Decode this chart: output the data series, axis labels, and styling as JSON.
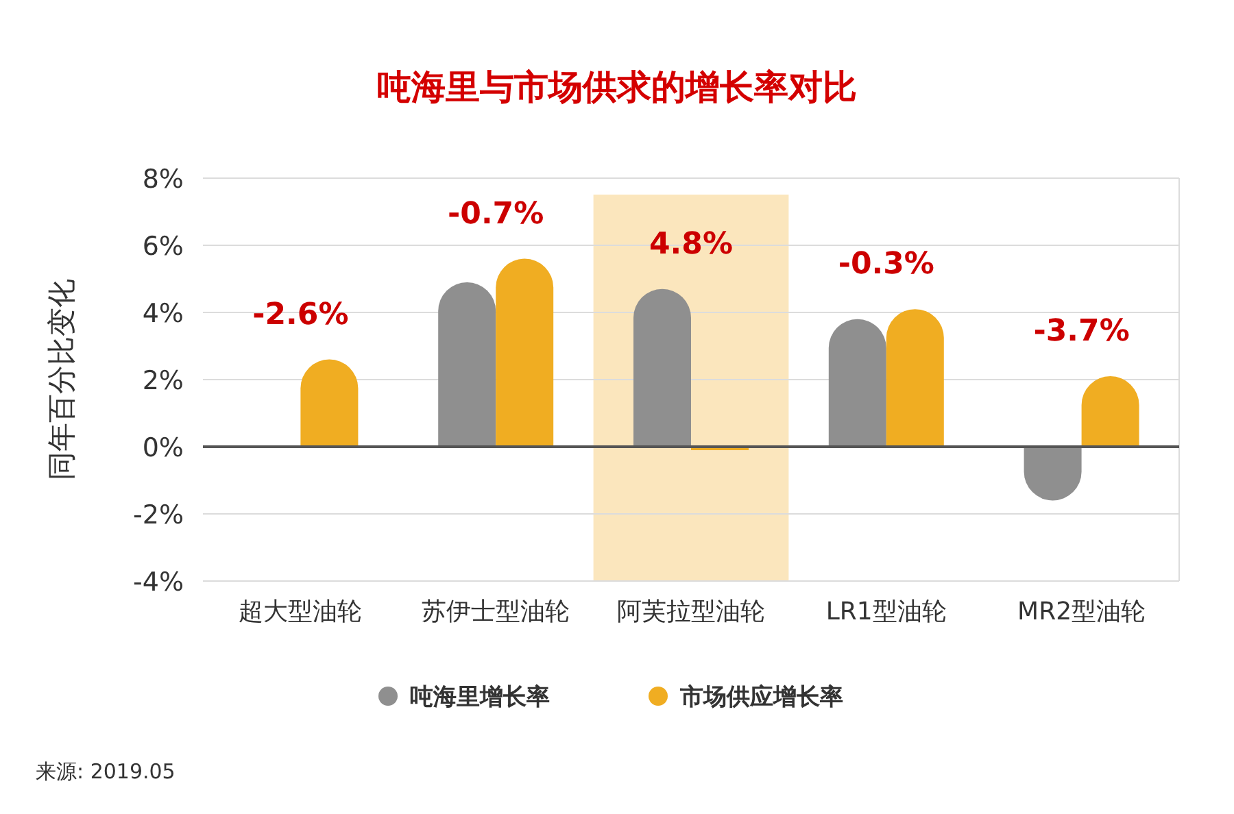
{
  "chart_data": {
    "type": "bar",
    "title": "吨海里与市场供求的增长率对比",
    "ylabel": "同年百分比变化",
    "categories": [
      "超大型油轮",
      "苏伊士型油轮",
      "阿芙拉型油轮",
      "LR1型油轮",
      "MR2型油轮"
    ],
    "series": [
      {
        "name": "吨海里增长率",
        "color": "#8f8f8f",
        "values": [
          null,
          4.9,
          4.7,
          3.8,
          -1.6
        ]
      },
      {
        "name": "市场供应增长率",
        "color": "#f0ad22",
        "values": [
          2.6,
          5.6,
          -0.1,
          4.1,
          2.1
        ]
      }
    ],
    "ylim": [
      -4,
      8
    ],
    "yticks": [
      {
        "value": -4,
        "label": "-4%"
      },
      {
        "value": -2,
        "label": "-2%"
      },
      {
        "value": 0,
        "label": "0%"
      },
      {
        "value": 2,
        "label": "2%"
      },
      {
        "value": 4,
        "label": "4%"
      },
      {
        "value": 6,
        "label": "6%"
      },
      {
        "value": 8,
        "label": "8%"
      }
    ],
    "grid": "y",
    "legend": "bottom",
    "bands": [
      {
        "axis": "x",
        "from": "阿芙拉型油轮",
        "to": "阿芙拉型油轮",
        "color": "#fbe6bd"
      }
    ],
    "annotations": [
      "-2.6%",
      "-0.7%",
      "4.8%",
      "-0.3%",
      "-3.7%",
      "来源: 2019.05"
    ]
  }
}
